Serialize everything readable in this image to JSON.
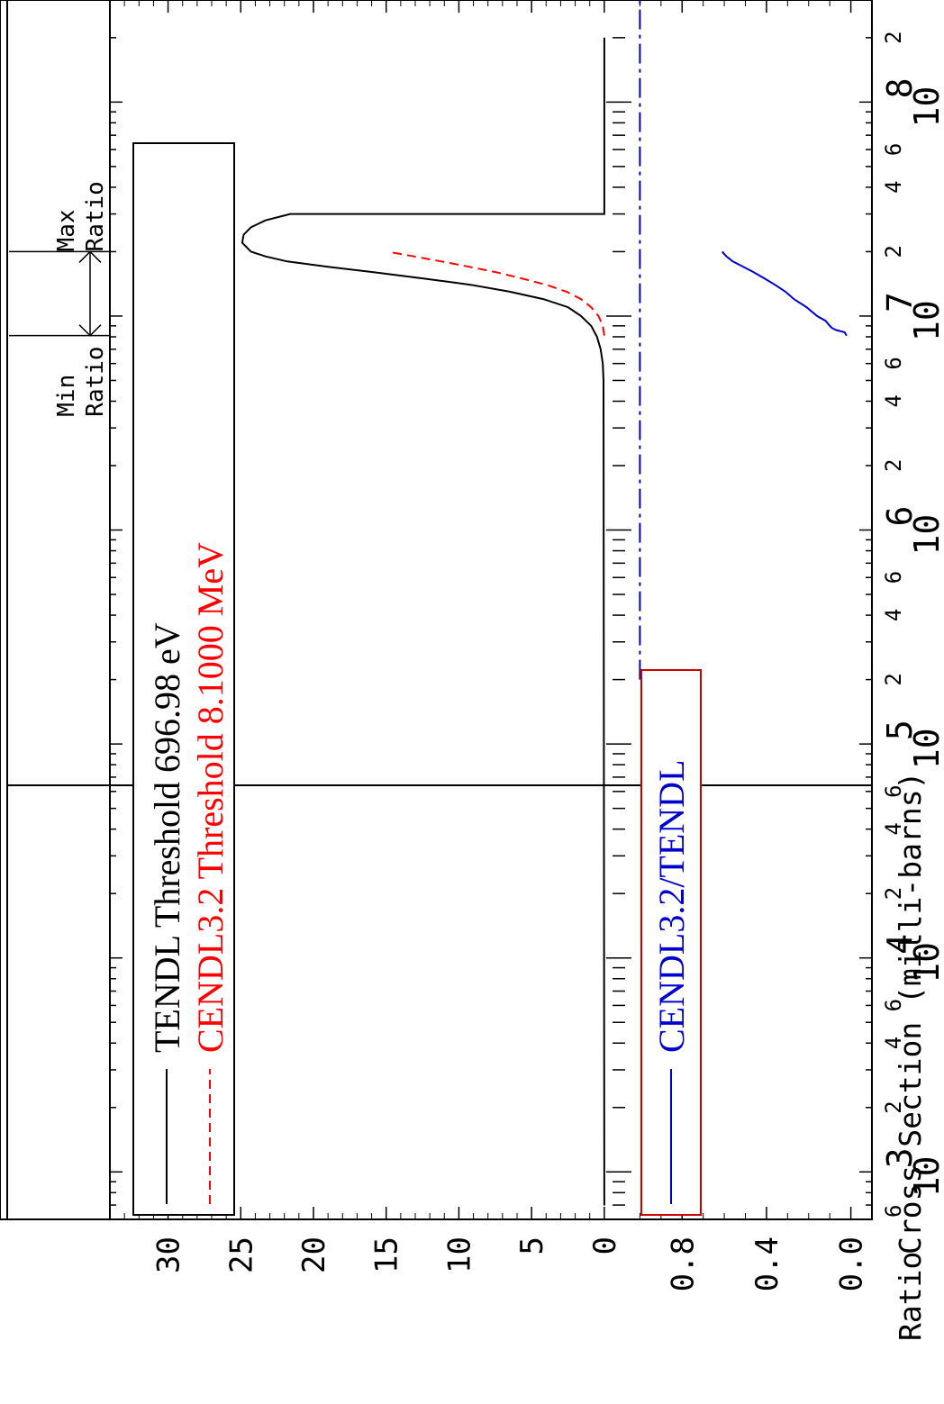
{
  "chart_data": [
    {
      "type": "line",
      "ylabel": "Cross Section (milli-barns)",
      "xscale": "log",
      "xlim": [
        600,
        300000000
      ],
      "ylim": [
        -1,
        34
      ],
      "yticks": [
        0,
        5,
        10,
        15,
        20,
        25,
        30
      ],
      "ytick_labels": [
        "0",
        "5",
        "10",
        "15",
        "20",
        "25",
        "30"
      ],
      "x_decades": [
        {
          "base": "10",
          "exp": "3"
        },
        {
          "base": "10",
          "exp": "4"
        },
        {
          "base": "10",
          "exp": "5"
        },
        {
          "base": "10",
          "exp": "6"
        },
        {
          "base": "10",
          "exp": "7"
        },
        {
          "base": "10",
          "exp": "8"
        }
      ],
      "x_minor_labels": [
        "2",
        "4",
        "6"
      ],
      "x_start_label": "6",
      "legend_position": "top-left",
      "series": [
        {
          "name": "TENDL Threshold 696.98 eV",
          "color": "#000000",
          "style": "solid",
          "points": [
            [
              696.98,
              0
            ],
            [
              5000000,
              0.05
            ],
            [
              6000000,
              0.1
            ],
            [
              7000000,
              0.25
            ],
            [
              8000000,
              0.5
            ],
            [
              9000000,
              0.9
            ],
            [
              10000000,
              1.6
            ],
            [
              11000000,
              2.5
            ],
            [
              12000000,
              4.2
            ],
            [
              13000000,
              6.5
            ],
            [
              14000000,
              9.2
            ],
            [
              15000000,
              12.5
            ],
            [
              16000000,
              15.8
            ],
            [
              17000000,
              19.0
            ],
            [
              18000000,
              21.8
            ],
            [
              19000000,
              23.3
            ],
            [
              20000000,
              24.3
            ],
            [
              22000000,
              24.9
            ],
            [
              24000000,
              24.8
            ],
            [
              26000000,
              24.3
            ],
            [
              28000000,
              23.3
            ],
            [
              30000000,
              21.6
            ],
            [
              30000001,
              0
            ],
            [
              200000000,
              0
            ]
          ]
        },
        {
          "name": "CENDL3.2 Threshold 8.1000 MeV",
          "color": "#ff0000",
          "style": "dashed",
          "points": [
            [
              8100000,
              0
            ],
            [
              9000000,
              0.1
            ],
            [
              10000000,
              0.4
            ],
            [
              11000000,
              0.9
            ],
            [
              12000000,
              1.6
            ],
            [
              13000000,
              2.6
            ],
            [
              14000000,
              4.0
            ],
            [
              15000000,
              5.7
            ],
            [
              16000000,
              7.4
            ],
            [
              17000000,
              9.3
            ],
            [
              18000000,
              11.2
            ],
            [
              19000000,
              13.1
            ],
            [
              20000000,
              14.9
            ]
          ]
        }
      ],
      "annotations": [
        {
          "text": "Min Ratio"
        },
        {
          "text": "Max Ratio"
        }
      ]
    },
    {
      "type": "line",
      "ylabel": "Ratio",
      "xscale": "log",
      "xlim": [
        600,
        300000000
      ],
      "ylim": [
        -0.1,
        1.1
      ],
      "yticks": [
        0.0,
        0.4,
        0.8
      ],
      "ytick_labels": [
        "0.0",
        "0.4",
        "0.8"
      ],
      "legend_position": "top-left",
      "series": [
        {
          "name": "CENDL3.2/TENDL",
          "color": "#0000cc",
          "style": "solid",
          "points": [
            [
              8100000,
              0.02
            ],
            [
              8400000,
              0.03
            ],
            [
              8600000,
              0.07
            ],
            [
              8800000,
              0.09
            ],
            [
              9000000,
              0.1
            ],
            [
              9500000,
              0.12
            ],
            [
              10000000,
              0.16
            ],
            [
              11000000,
              0.21
            ],
            [
              12000000,
              0.27
            ],
            [
              13000000,
              0.31
            ],
            [
              14000000,
              0.36
            ],
            [
              15000000,
              0.41
            ],
            [
              16000000,
              0.46
            ],
            [
              17000000,
              0.51
            ],
            [
              18000000,
              0.56
            ],
            [
              19000000,
              0.59
            ],
            [
              20000000,
              0.61
            ]
          ]
        },
        {
          "name": "",
          "color": "#0000cc",
          "style": "dashdot",
          "points": [
            [
              200000,
              1.0
            ],
            [
              300000000,
              1.0
            ]
          ]
        }
      ]
    }
  ]
}
